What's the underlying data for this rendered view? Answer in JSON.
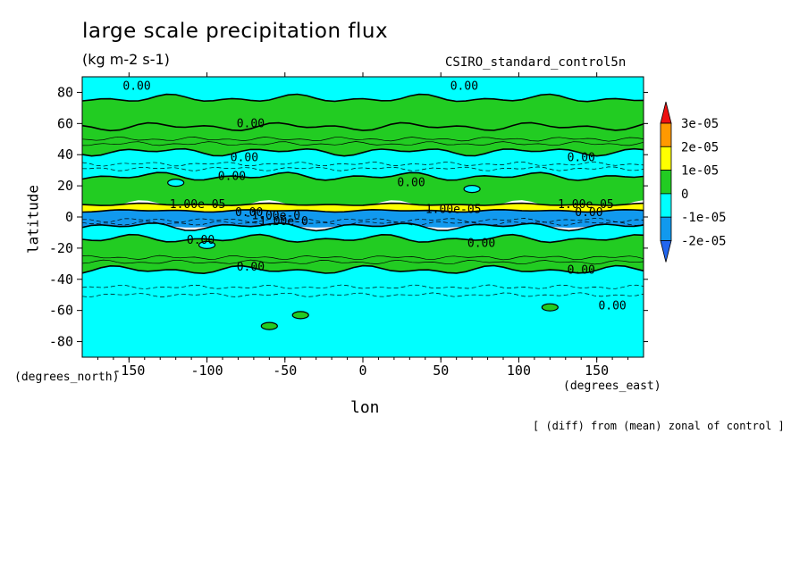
{
  "chart_data": {
    "type": "contour",
    "title": "large scale precipitation flux",
    "units": "(kg m-2 s-1)",
    "run_name": "CSIRO_standard_control5n",
    "xlabel": "lon",
    "ylabel": "latitude",
    "x_units": "(degrees_east)",
    "y_units": "(degrees_north)",
    "note": "[ (diff) from (mean) zonal of control ]",
    "xlim": [
      -180,
      180
    ],
    "ylim": [
      -90,
      90
    ],
    "x_ticks": [
      -150,
      -100,
      -50,
      0,
      50,
      100,
      150
    ],
    "x_tick_labels": [
      "-150",
      "-100",
      "-50",
      "0",
      "50",
      "100",
      "150"
    ],
    "y_ticks": [
      80,
      60,
      40,
      20,
      0,
      -20,
      -40,
      -60,
      -80
    ],
    "y_tick_labels": [
      "80",
      "60",
      "40",
      "20",
      "0",
      "-20",
      "-40",
      "-60",
      "-80"
    ],
    "legend": {
      "placement": "right",
      "levels": [
        "3e-05",
        "2e-05",
        "1e-05",
        "0",
        "-1e-05",
        "-2e-05"
      ],
      "colors": [
        "#ee1111",
        "#ff9900",
        "#ffff00",
        "#22cc22",
        "#00ffff",
        "#1199ee",
        "#2266ee"
      ]
    },
    "bands": [
      {
        "lat_top": 90,
        "lat_bottom": 76,
        "class": "negative"
      },
      {
        "lat_top": 76,
        "lat_bottom": 58,
        "class": "positive"
      },
      {
        "lat_top": 58,
        "lat_bottom": 42,
        "class": "positive"
      },
      {
        "lat_top": 42,
        "lat_bottom": 26,
        "class": "negative"
      },
      {
        "lat_top": 26,
        "lat_bottom": 8,
        "class": "positive"
      },
      {
        "lat_top": 8,
        "lat_bottom": 4,
        "class": "strong-positive"
      },
      {
        "lat_top": 4,
        "lat_bottom": -6,
        "class": "strong-negative"
      },
      {
        "lat_top": -6,
        "lat_bottom": -14,
        "class": "negative"
      },
      {
        "lat_top": -14,
        "lat_bottom": -34,
        "class": "positive"
      },
      {
        "lat_top": -34,
        "lat_bottom": -90,
        "class": "negative"
      }
    ],
    "contour_labels": [
      {
        "lon": -145,
        "lat": 84,
        "text": "0.00"
      },
      {
        "lon": 65,
        "lat": 84,
        "text": "0.00"
      },
      {
        "lon": -72,
        "lat": 60,
        "text": "0.00"
      },
      {
        "lon": -76,
        "lat": 38,
        "text": "0.00"
      },
      {
        "lon": 140,
        "lat": 38,
        "text": "0.00"
      },
      {
        "lon": -84,
        "lat": 26,
        "text": "0.00"
      },
      {
        "lon": 31,
        "lat": 22,
        "text": "0.00"
      },
      {
        "lon": -106,
        "lat": 8,
        "text": "1.00e-05"
      },
      {
        "lon": 58,
        "lat": 5,
        "text": "1.00e-05"
      },
      {
        "lon": 143,
        "lat": 8,
        "text": "1.00e-05"
      },
      {
        "lon": 145,
        "lat": 3,
        "text": "0.00"
      },
      {
        "lon": -73,
        "lat": 3,
        "text": "0.00"
      },
      {
        "lon": -58,
        "lat": 1,
        "text": "-1.00e-0"
      },
      {
        "lon": -53,
        "lat": -3,
        "text": "-1.00e-0"
      },
      {
        "lon": -104,
        "lat": -15,
        "text": "0.00"
      },
      {
        "lon": 76,
        "lat": -17,
        "text": "0.00"
      },
      {
        "lon": -72,
        "lat": -32,
        "text": "0.00"
      },
      {
        "lon": 140,
        "lat": -34,
        "text": "0.00"
      },
      {
        "lon": 160,
        "lat": -57,
        "text": "0.00"
      }
    ]
  }
}
